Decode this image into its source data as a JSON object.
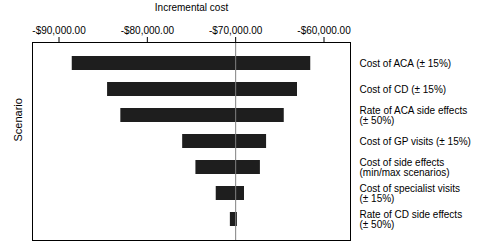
{
  "chart_data": {
    "type": "bar",
    "orientation": "horizontal",
    "xlabel": "Incremental cost",
    "ylabel": "Scenario",
    "categories": [
      "Cost of ACA (± 15%)",
      "Cost of CD (± 15%)",
      "Rate of ACA side effects\n(± 50%)",
      "Cost of GP visits (± 15%)",
      "Cost of side effects\n(min/max scenarios)",
      "Cost of specialist visits\n(± 15%)",
      "Rate of CD side effects\n(± 50%)"
    ],
    "low": [
      -88500,
      -84500,
      -83000,
      -76000,
      -74500,
      -72200,
      -70600
    ],
    "high": [
      -61500,
      -63000,
      -64500,
      -66500,
      -67200,
      -69000,
      -69800
    ],
    "baseline": -70000,
    "color": "#1e1e1e",
    "xlim": [
      -93000,
      -57000
    ],
    "xticks": [
      {
        "value": -90000,
        "label": "-$90,000.00"
      },
      {
        "value": -80000,
        "label": "-$80,000.00"
      },
      {
        "value": -70000,
        "label": "-$70,000.00"
      },
      {
        "value": -60000,
        "label": "-$60,000.00"
      }
    ],
    "grid": false
  }
}
